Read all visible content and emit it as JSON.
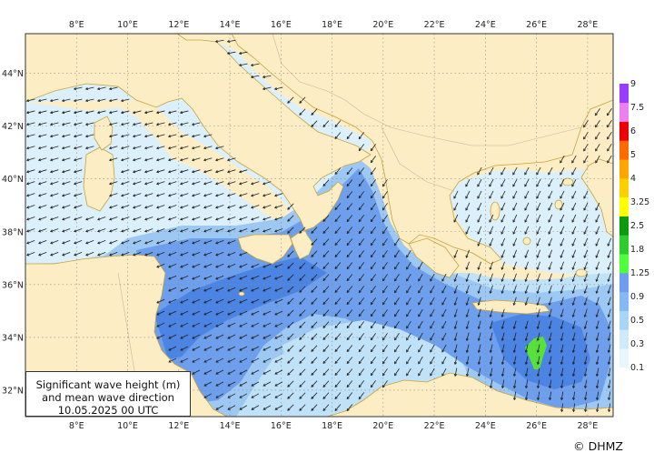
{
  "map": {
    "lon_labels": [
      "8°E",
      "10°E",
      "12°E",
      "14°E",
      "16°E",
      "18°E",
      "20°E",
      "22°E",
      "24°E",
      "26°E",
      "28°E"
    ],
    "lat_labels": [
      "44°N",
      "42°N",
      "40°N",
      "38°N",
      "36°N",
      "34°N",
      "32°N"
    ],
    "lon_range": [
      6,
      29
    ],
    "lat_range": [
      31,
      45.5
    ]
  },
  "legend": {
    "line1": "Significant wave height (m)",
    "line2": "and mean wave direction",
    "line3": "10.05.2025 00  UTC"
  },
  "colorbar": {
    "labels": [
      "0.1",
      "0.3",
      "0.5",
      "0.9",
      "1.25",
      "1.8",
      "2.5",
      "3.25",
      "4",
      "5",
      "6",
      "7.5",
      "9"
    ],
    "colors": [
      "#e6f6fc",
      "#cfeafb",
      "#a9d5f6",
      "#86b9f1",
      "#6c9df0",
      "#4fff3a",
      "#2ccc2c",
      "#0c9b0c",
      "#ffff00",
      "#ffd000",
      "#ffa500",
      "#ff6a00",
      "#ee0000",
      "#ee80ee",
      "#9a3cff"
    ]
  },
  "colors": {
    "land": "#fcedc5",
    "coast": "#c9a23a",
    "sea_calm": "#dbf0fb",
    "sea_light": "#c0e2f8",
    "sea_mid": "#9cc8f3",
    "sea_high": "#6d9fec",
    "sea_peak": "#4c84e4",
    "hot": "#56e23a"
  },
  "copyright": "© DHMZ"
}
